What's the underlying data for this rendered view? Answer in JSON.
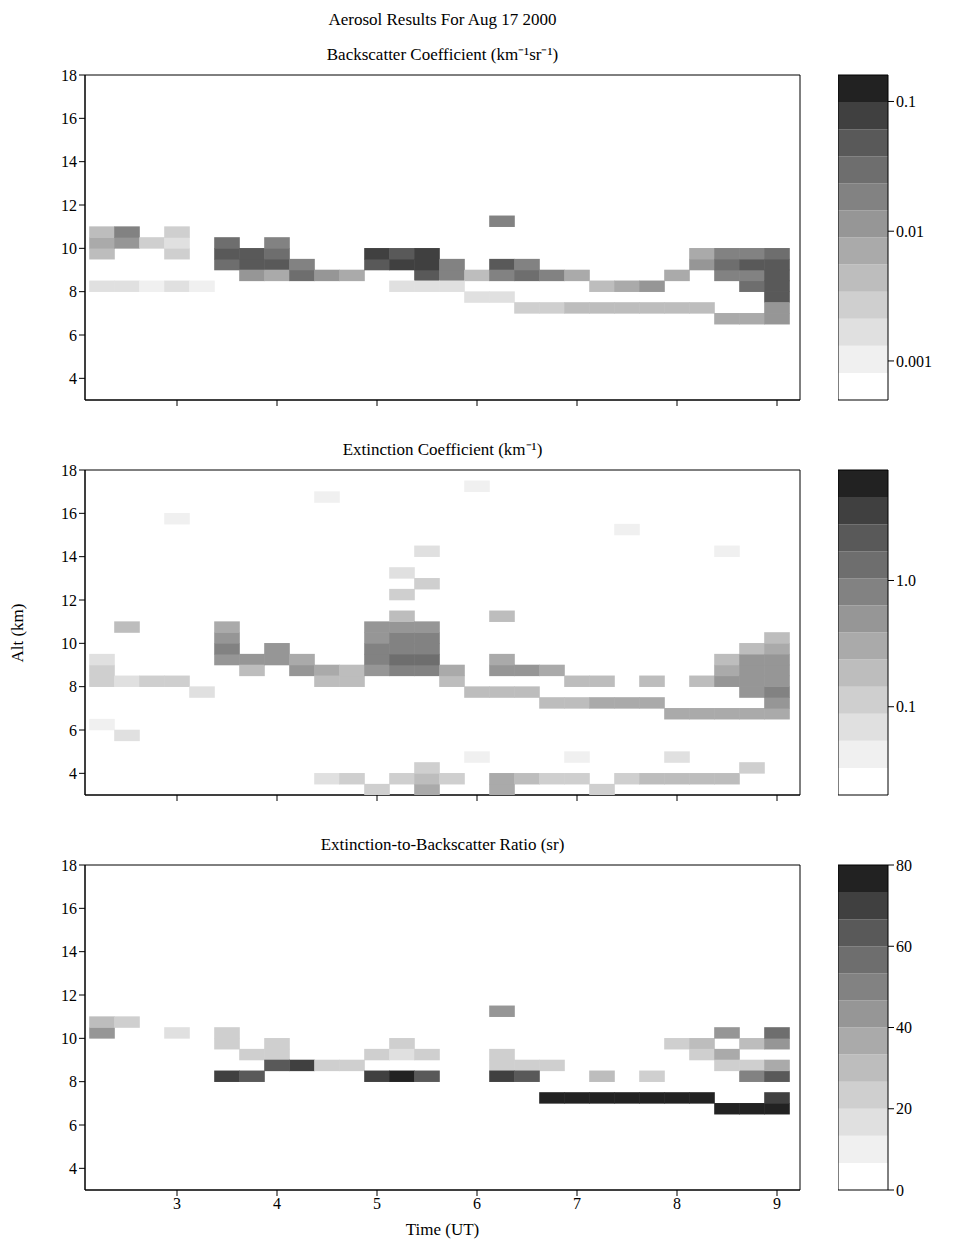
{
  "title": "Aerosol Results For Aug 17 2000",
  "chart_data": [
    {
      "type": "heatmap",
      "title": "Backscatter Coefficient (km⁻¹sr⁻¹)",
      "xlim": [
        2.08,
        9.23
      ],
      "ylim": [
        3,
        18
      ],
      "xticks": [
        3,
        4,
        5,
        6,
        7,
        8,
        9
      ],
      "yticks": [
        4,
        6,
        8,
        10,
        12,
        14,
        16,
        18
      ],
      "tick_labels": "y",
      "cell_size": [
        0.25,
        0.5
      ],
      "cells": [
        [
          2.25,
          9.75,
          0.004
        ],
        [
          2.25,
          10.25,
          0.006
        ],
        [
          2.25,
          10.75,
          0.005
        ],
        [
          2.5,
          10.25,
          0.012
        ],
        [
          2.5,
          10.75,
          0.015
        ],
        [
          2.75,
          10.25,
          0.003
        ],
        [
          3.0,
          9.75,
          0.003
        ],
        [
          3.0,
          10.25,
          0.002
        ],
        [
          3.0,
          10.75,
          0.003
        ],
        [
          2.25,
          8.25,
          0.0015
        ],
        [
          2.5,
          8.25,
          0.0015
        ],
        [
          2.75,
          8.25,
          0.0012
        ],
        [
          3.0,
          8.25,
          0.0015
        ],
        [
          3.25,
          8.25,
          0.0012
        ],
        [
          3.5,
          9.25,
          0.03
        ],
        [
          3.5,
          9.75,
          0.06
        ],
        [
          3.5,
          10.25,
          0.03
        ],
        [
          3.75,
          9.25,
          0.05
        ],
        [
          3.75,
          9.75,
          0.04
        ],
        [
          3.75,
          8.75,
          0.01
        ],
        [
          4.0,
          9.25,
          0.04
        ],
        [
          4.0,
          9.75,
          0.03
        ],
        [
          4.0,
          10.25,
          0.015
        ],
        [
          4.0,
          8.75,
          0.008
        ],
        [
          4.25,
          8.75,
          0.03
        ],
        [
          4.25,
          9.25,
          0.02
        ],
        [
          4.5,
          8.75,
          0.01
        ],
        [
          4.75,
          8.75,
          0.006
        ],
        [
          5.0,
          9.25,
          0.05
        ],
        [
          5.0,
          9.75,
          0.08
        ],
        [
          5.25,
          9.25,
          0.08
        ],
        [
          5.25,
          9.75,
          0.06
        ],
        [
          5.5,
          8.75,
          0.05
        ],
        [
          5.5,
          9.25,
          0.08
        ],
        [
          5.5,
          9.75,
          0.07
        ],
        [
          5.75,
          8.75,
          0.02
        ],
        [
          5.75,
          9.25,
          0.015
        ],
        [
          6.0,
          8.75,
          0.004
        ],
        [
          6.25,
          9.25,
          0.04
        ],
        [
          6.25,
          8.75,
          0.02
        ],
        [
          6.25,
          11.25,
          0.02
        ],
        [
          6.5,
          8.75,
          0.03
        ],
        [
          6.5,
          9.25,
          0.02
        ],
        [
          6.75,
          8.75,
          0.02
        ],
        [
          7.0,
          8.75,
          0.006
        ],
        [
          7.25,
          8.25,
          0.004
        ],
        [
          7.5,
          8.25,
          0.008
        ],
        [
          7.75,
          8.25,
          0.01
        ],
        [
          8.0,
          8.75,
          0.006
        ],
        [
          8.25,
          9.25,
          0.01
        ],
        [
          8.25,
          9.75,
          0.008
        ],
        [
          8.5,
          8.75,
          0.02
        ],
        [
          8.5,
          9.25,
          0.03
        ],
        [
          8.5,
          9.75,
          0.015
        ],
        [
          8.75,
          8.25,
          0.03
        ],
        [
          8.75,
          8.75,
          0.02
        ],
        [
          8.75,
          9.25,
          0.04
        ],
        [
          8.75,
          9.75,
          0.02
        ],
        [
          9.0,
          7.75,
          0.05
        ],
        [
          9.0,
          8.25,
          0.06
        ],
        [
          9.0,
          8.75,
          0.04
        ],
        [
          9.0,
          9.25,
          0.05
        ],
        [
          9.0,
          9.75,
          0.03
        ],
        [
          5.25,
          8.25,
          0.002
        ],
        [
          5.5,
          8.25,
          0.002
        ],
        [
          5.75,
          8.25,
          0.002
        ],
        [
          6.0,
          7.75,
          0.002
        ],
        [
          6.25,
          7.75,
          0.002
        ],
        [
          6.5,
          7.25,
          0.003
        ],
        [
          6.75,
          7.25,
          0.003
        ],
        [
          7.0,
          7.25,
          0.004
        ],
        [
          7.25,
          7.25,
          0.004
        ],
        [
          7.5,
          7.25,
          0.004
        ],
        [
          7.75,
          7.25,
          0.004
        ],
        [
          8.0,
          7.25,
          0.005
        ],
        [
          8.25,
          7.25,
          0.005
        ],
        [
          8.5,
          6.75,
          0.006
        ],
        [
          8.75,
          6.75,
          0.008
        ],
        [
          9.0,
          6.75,
          0.01
        ],
        [
          9.0,
          7.25,
          0.01
        ]
      ],
      "colorbar": {
        "range": [
          0.0005,
          0.16
        ],
        "log": true,
        "ticks": [
          0.001,
          0.01,
          0.1
        ],
        "colors": [
          "#ffffff",
          "#f0f0f0",
          "#e0e0e0",
          "#cfcfcf",
          "#bdbdbd",
          "#aaaaaa",
          "#969696",
          "#828282",
          "#6e6e6e",
          "#595959",
          "#404040",
          "#222222"
        ]
      }
    },
    {
      "type": "heatmap",
      "title": "Extinction Coefficient (km⁻¹)",
      "y_label": "Alt (km)",
      "xlim": [
        2.08,
        9.23
      ],
      "ylim": [
        3,
        18
      ],
      "xticks": [
        3,
        4,
        5,
        6,
        7,
        8,
        9
      ],
      "yticks": [
        4,
        6,
        8,
        10,
        12,
        14,
        16,
        18
      ],
      "tick_labels": "y",
      "cell_size": [
        0.25,
        0.5
      ],
      "cells": [
        [
          2.25,
          8.25,
          0.12
        ],
        [
          2.25,
          8.75,
          0.1
        ],
        [
          2.25,
          9.25,
          0.06
        ],
        [
          2.5,
          10.75,
          0.15
        ],
        [
          2.5,
          8.25,
          0.08
        ],
        [
          2.75,
          8.25,
          0.1
        ],
        [
          3.0,
          8.25,
          0.12
        ],
        [
          3.25,
          7.75,
          0.08
        ],
        [
          2.25,
          6.25,
          0.05
        ],
        [
          2.5,
          5.75,
          0.06
        ],
        [
          3.5,
          9.25,
          0.6
        ],
        [
          3.5,
          9.75,
          0.8
        ],
        [
          3.5,
          10.25,
          0.5
        ],
        [
          3.5,
          10.75,
          0.3
        ],
        [
          3.75,
          9.25,
          0.5
        ],
        [
          3.75,
          8.75,
          0.2
        ],
        [
          4.0,
          9.25,
          0.4
        ],
        [
          4.0,
          9.75,
          0.5
        ],
        [
          4.25,
          8.75,
          0.4
        ],
        [
          4.25,
          9.25,
          0.3
        ],
        [
          4.5,
          8.75,
          0.3
        ],
        [
          4.75,
          8.25,
          0.15
        ],
        [
          4.75,
          8.75,
          0.2
        ],
        [
          4.5,
          8.25,
          0.15
        ],
        [
          5.0,
          9.25,
          0.8
        ],
        [
          5.0,
          9.75,
          1.0
        ],
        [
          5.0,
          10.25,
          0.6
        ],
        [
          5.0,
          10.75,
          0.4
        ],
        [
          5.0,
          8.75,
          0.5
        ],
        [
          5.25,
          8.75,
          0.9
        ],
        [
          5.25,
          9.25,
          1.2
        ],
        [
          5.25,
          9.75,
          1.0
        ],
        [
          5.25,
          10.25,
          0.8
        ],
        [
          5.25,
          10.75,
          0.5
        ],
        [
          5.25,
          11.25,
          0.2
        ],
        [
          5.25,
          12.25,
          0.1
        ],
        [
          5.25,
          13.25,
          0.08
        ],
        [
          5.5,
          8.75,
          1.0
        ],
        [
          5.5,
          9.25,
          1.2
        ],
        [
          5.5,
          9.75,
          0.9
        ],
        [
          5.5,
          10.25,
          0.7
        ],
        [
          5.5,
          10.75,
          0.4
        ],
        [
          5.5,
          12.75,
          0.1
        ],
        [
          5.5,
          14.25,
          0.08
        ],
        [
          5.75,
          8.25,
          0.2
        ],
        [
          5.75,
          8.75,
          0.3
        ],
        [
          6.25,
          8.75,
          0.5
        ],
        [
          6.25,
          9.25,
          0.3
        ],
        [
          6.25,
          11.25,
          0.2
        ],
        [
          6.5,
          8.75,
          0.4
        ],
        [
          6.75,
          8.75,
          0.3
        ],
        [
          7.0,
          8.25,
          0.2
        ],
        [
          6.0,
          7.75,
          0.15
        ],
        [
          6.25,
          7.75,
          0.15
        ],
        [
          6.5,
          7.75,
          0.15
        ],
        [
          6.75,
          7.25,
          0.2
        ],
        [
          7.0,
          7.25,
          0.2
        ],
        [
          7.25,
          7.25,
          0.25
        ],
        [
          7.5,
          7.25,
          0.25
        ],
        [
          7.75,
          7.25,
          0.25
        ],
        [
          8.0,
          6.75,
          0.25
        ],
        [
          8.25,
          6.75,
          0.25
        ],
        [
          8.5,
          6.75,
          0.3
        ],
        [
          8.75,
          6.75,
          0.3
        ],
        [
          9.0,
          6.75,
          0.3
        ],
        [
          7.25,
          8.25,
          0.15
        ],
        [
          7.75,
          8.25,
          0.15
        ],
        [
          8.25,
          8.25,
          0.2
        ],
        [
          8.5,
          8.25,
          0.4
        ],
        [
          8.5,
          8.75,
          0.3
        ],
        [
          8.5,
          9.25,
          0.2
        ],
        [
          8.75,
          7.75,
          0.5
        ],
        [
          8.75,
          8.25,
          0.6
        ],
        [
          8.75,
          8.75,
          0.5
        ],
        [
          8.75,
          9.25,
          0.4
        ],
        [
          8.75,
          9.75,
          0.2
        ],
        [
          9.0,
          7.25,
          0.6
        ],
        [
          9.0,
          7.75,
          0.7
        ],
        [
          9.0,
          8.25,
          0.6
        ],
        [
          9.0,
          8.75,
          0.5
        ],
        [
          9.0,
          9.25,
          0.4
        ],
        [
          9.0,
          9.75,
          0.3
        ],
        [
          9.0,
          10.25,
          0.15
        ],
        [
          4.5,
          3.75,
          0.08
        ],
        [
          4.75,
          3.75,
          0.1
        ],
        [
          5.0,
          3.25,
          0.1
        ],
        [
          5.25,
          3.75,
          0.12
        ],
        [
          5.5,
          3.25,
          0.25
        ],
        [
          5.5,
          3.75,
          0.2
        ],
        [
          5.5,
          4.25,
          0.12
        ],
        [
          5.75,
          3.75,
          0.1
        ],
        [
          6.25,
          3.25,
          0.3
        ],
        [
          6.25,
          3.75,
          0.25
        ],
        [
          6.5,
          3.75,
          0.15
        ],
        [
          6.75,
          3.75,
          0.12
        ],
        [
          7.0,
          3.75,
          0.1
        ],
        [
          7.25,
          3.25,
          0.12
        ],
        [
          7.5,
          3.75,
          0.12
        ],
        [
          7.75,
          3.75,
          0.15
        ],
        [
          8.0,
          3.75,
          0.2
        ],
        [
          8.25,
          3.75,
          0.2
        ],
        [
          8.5,
          3.75,
          0.18
        ],
        [
          8.75,
          4.25,
          0.1
        ],
        [
          6.0,
          4.75,
          0.05
        ],
        [
          7.0,
          4.75,
          0.05
        ],
        [
          8.0,
          4.75,
          0.06
        ],
        [
          3.0,
          15.75,
          0.04
        ],
        [
          4.5,
          16.75,
          0.04
        ],
        [
          6.0,
          17.25,
          0.04
        ],
        [
          7.5,
          15.25,
          0.04
        ],
        [
          8.5,
          14.25,
          0.05
        ]
      ],
      "colorbar": {
        "range": [
          0.02,
          7.5
        ],
        "log": true,
        "ticks": [
          0.1,
          {
            "value": 1,
            "label": "1.0"
          }
        ],
        "colors": [
          "#ffffff",
          "#f0f0f0",
          "#e0e0e0",
          "#cfcfcf",
          "#bdbdbd",
          "#aaaaaa",
          "#969696",
          "#828282",
          "#6e6e6e",
          "#595959",
          "#404040",
          "#222222"
        ]
      }
    },
    {
      "type": "heatmap",
      "title": "Extinction-to-Backscatter Ratio (sr)",
      "x_label": "Time (UT)",
      "xlim": [
        2.08,
        9.23
      ],
      "ylim": [
        3,
        18
      ],
      "xticks": [
        3,
        4,
        5,
        6,
        7,
        8,
        9
      ],
      "yticks": [
        4,
        6,
        8,
        10,
        12,
        14,
        16,
        18
      ],
      "cell_size": [
        0.25,
        0.5
      ],
      "cells": [
        [
          2.25,
          10.25,
          40
        ],
        [
          2.25,
          10.75,
          30
        ],
        [
          2.5,
          10.75,
          20
        ],
        [
          3.0,
          10.25,
          15
        ],
        [
          3.5,
          8.25,
          70
        ],
        [
          3.75,
          8.25,
          65
        ],
        [
          3.5,
          9.75,
          20
        ],
        [
          3.5,
          10.25,
          25
        ],
        [
          3.75,
          9.25,
          20
        ],
        [
          4.0,
          9.75,
          25
        ],
        [
          4.0,
          9.25,
          20
        ],
        [
          4.25,
          8.75,
          70
        ],
        [
          4.0,
          8.75,
          60
        ],
        [
          4.5,
          8.75,
          20
        ],
        [
          4.75,
          8.75,
          25
        ],
        [
          5.0,
          9.25,
          20
        ],
        [
          5.25,
          9.75,
          25
        ],
        [
          5.25,
          9.25,
          15
        ],
        [
          5.5,
          9.25,
          20
        ],
        [
          5.0,
          8.25,
          70
        ],
        [
          5.25,
          8.25,
          75
        ],
        [
          5.5,
          8.25,
          65
        ],
        [
          6.25,
          8.75,
          25
        ],
        [
          6.25,
          9.25,
          20
        ],
        [
          6.25,
          11.25,
          40
        ],
        [
          6.5,
          8.75,
          20
        ],
        [
          6.75,
          8.75,
          25
        ],
        [
          6.25,
          8.25,
          70
        ],
        [
          6.5,
          8.25,
          60
        ],
        [
          6.75,
          7.25,
          75
        ],
        [
          7.0,
          7.25,
          80
        ],
        [
          7.25,
          7.25,
          80
        ],
        [
          7.5,
          7.25,
          80
        ],
        [
          7.75,
          7.25,
          75
        ],
        [
          8.0,
          7.25,
          80
        ],
        [
          8.25,
          7.25,
          80
        ],
        [
          8.5,
          6.75,
          75
        ],
        [
          8.75,
          6.75,
          80
        ],
        [
          9.0,
          6.75,
          75
        ],
        [
          9.0,
          7.25,
          70
        ],
        [
          7.25,
          8.25,
          30
        ],
        [
          7.75,
          8.25,
          25
        ],
        [
          8.0,
          9.75,
          25
        ],
        [
          8.25,
          9.75,
          30
        ],
        [
          8.25,
          9.25,
          25
        ],
        [
          8.5,
          9.25,
          35
        ],
        [
          8.5,
          10.25,
          40
        ],
        [
          8.75,
          9.75,
          30
        ],
        [
          8.75,
          8.75,
          25
        ],
        [
          8.75,
          8.25,
          50
        ],
        [
          9.0,
          8.25,
          60
        ],
        [
          9.0,
          8.75,
          35
        ],
        [
          9.0,
          9.75,
          45
        ],
        [
          9.0,
          10.25,
          55
        ],
        [
          8.5,
          8.75,
          20
        ]
      ],
      "colorbar": {
        "range": [
          0,
          80
        ],
        "log": false,
        "ticks": [
          0,
          20,
          40,
          60,
          80
        ],
        "colors": [
          "#ffffff",
          "#f0f0f0",
          "#e0e0e0",
          "#cfcfcf",
          "#bdbdbd",
          "#aaaaaa",
          "#969696",
          "#828282",
          "#6e6e6e",
          "#595959",
          "#404040",
          "#222222"
        ]
      }
    }
  ]
}
